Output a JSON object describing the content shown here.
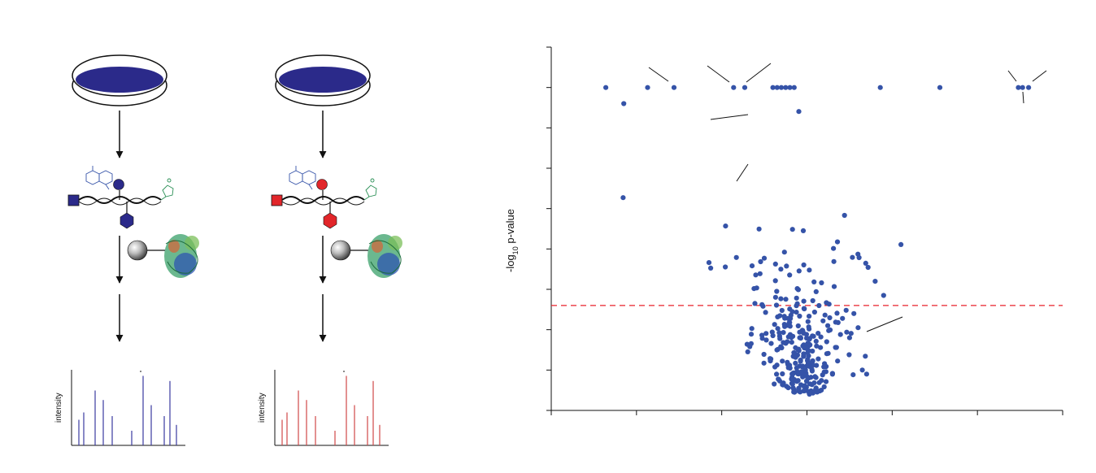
{
  "workflow": {
    "spectrum_ylabel": "intensity",
    "colors": {
      "left": "#2b2a8a",
      "right": "#e2262a",
      "probe_dna": "#3553a8",
      "tag": "#2a8f55",
      "protein": "#2f8f5a"
    }
  },
  "chart_data": {
    "type": "scatter",
    "title": "",
    "xlabel": "",
    "ylabel_main": "-log",
    "ylabel_sub": "10",
    "ylabel_rest": " p-value",
    "xlim": [
      0,
      6
    ],
    "ylim": [
      0,
      9
    ],
    "x_ticks": [
      0,
      1,
      2,
      3,
      4,
      5,
      6
    ],
    "y_ticks": [
      0,
      1,
      2,
      3,
      4,
      5,
      6,
      7,
      8,
      9
    ],
    "x_tick_labels_visible": false,
    "y_tick_labels_visible": false,
    "threshold": {
      "y": 2.6,
      "color": "#e8202a",
      "style": "dashed"
    },
    "point_color": "#3553a8",
    "seed": 7
  }
}
